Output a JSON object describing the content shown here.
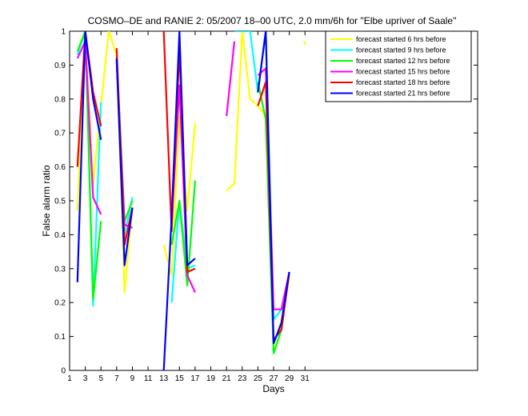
{
  "chart_data": {
    "type": "line",
    "title": "COSMO–DE and RANIE 2: 05/2007 18–00 UTC, 2.0 mm/6h for \"Elbe upriver of Saale\"",
    "xlabel": "Days",
    "ylabel": "False alarm ratio",
    "xlim": [
      1,
      53
    ],
    "ylim": [
      0,
      1
    ],
    "xticks": [
      1,
      3,
      5,
      7,
      9,
      11,
      13,
      15,
      17,
      19,
      21,
      23,
      25,
      27,
      29,
      31
    ],
    "yticks": [
      0,
      0.1,
      0.2,
      0.3,
      0.4,
      0.5,
      0.6,
      0.7,
      0.8,
      0.9,
      1
    ],
    "ytick_labels": [
      "0",
      "0.1",
      "0.2",
      "0.3",
      "0.4",
      "0.5",
      "0.6",
      "0.7",
      "0.8",
      "0.9",
      "1"
    ],
    "legend_position": "top-right",
    "series": [
      {
        "name": "forecast started 6 hrs before",
        "color": "#ffff00",
        "segments": [
          [
            [
              2,
              0.47
            ],
            [
              3,
              1.0
            ],
            [
              4,
              0.55
            ],
            [
              5,
              0.78
            ],
            [
              6,
              1.0
            ],
            [
              7,
              0.93
            ],
            [
              8,
              0.23
            ],
            [
              9,
              0.48
            ]
          ],
          [
            [
              13,
              0.37
            ],
            [
              14,
              0.28
            ],
            [
              15,
              0.75
            ],
            [
              16,
              0.47
            ],
            [
              17,
              0.73
            ]
          ],
          [
            [
              21,
              0.53
            ],
            [
              22,
              0.55
            ],
            [
              23,
              1.0
            ],
            [
              24,
              0.8
            ],
            [
              25,
              0.78
            ],
            [
              26,
              0.75
            ],
            [
              27,
              0.07
            ],
            [
              28,
              0.15
            ],
            [
              29,
              0.27
            ]
          ],
          [
            [
              30.9,
              0.97
            ],
            [
              31,
              0.96
            ]
          ]
        ]
      },
      {
        "name": "forecast started 9 hrs before",
        "color": "#00ffff",
        "segments": [
          [
            [
              2,
              0.93
            ],
            [
              3,
              1.0
            ],
            [
              4,
              0.19
            ],
            [
              5,
              0.79
            ]
          ],
          [
            [
              7,
              0.92
            ],
            [
              8,
              0.4
            ],
            [
              9,
              0.51
            ]
          ],
          [
            [
              14,
              0.2
            ],
            [
              15,
              0.5
            ],
            [
              16,
              0.3
            ],
            [
              17,
              0.31
            ]
          ],
          [
            [
              22,
              1.0
            ],
            [
              24,
              1.0
            ],
            [
              25,
              0.82
            ],
            [
              26,
              1.0
            ],
            [
              27,
              0.15
            ],
            [
              28,
              0.18
            ],
            [
              29,
              0.28
            ]
          ]
        ]
      },
      {
        "name": "forecast started 12 hrs before",
        "color": "#00ff00",
        "segments": [
          [
            [
              2,
              0.94
            ],
            [
              3,
              1.0
            ],
            [
              4,
              0.21
            ],
            [
              5,
              0.44
            ]
          ],
          [
            [
              7,
              0.93
            ],
            [
              8,
              0.44
            ],
            [
              9,
              0.5
            ]
          ],
          [
            [
              14,
              0.37
            ],
            [
              15,
              0.5
            ],
            [
              16,
              0.25
            ],
            [
              17,
              0.56
            ]
          ],
          [
            [
              25,
              0.85
            ],
            [
              26,
              0.74
            ],
            [
              27,
              0.05
            ],
            [
              28,
              0.12
            ],
            [
              29,
              0.29
            ]
          ]
        ]
      },
      {
        "name": "forecast started 15 hrs before",
        "color": "#ff00ff",
        "segments": [
          [
            [
              2,
              0.92
            ],
            [
              3,
              0.97
            ],
            [
              4,
              0.51
            ],
            [
              5,
              0.46
            ]
          ],
          [
            [
              7,
              0.91
            ],
            [
              8,
              0.43
            ],
            [
              9,
              0.42
            ]
          ],
          [
            [
              14,
              0.43
            ],
            [
              15,
              0.84
            ],
            [
              16,
              0.28
            ],
            [
              17,
              0.23
            ]
          ],
          [
            [
              21,
              0.75
            ],
            [
              22,
              0.97
            ]
          ],
          [
            [
              25,
              0.87
            ],
            [
              26,
              0.89
            ],
            [
              27,
              0.18
            ],
            [
              28,
              0.18
            ],
            [
              29,
              0.29
            ]
          ]
        ]
      },
      {
        "name": "forecast started 18 hrs before",
        "color": "#ff0000",
        "segments": [
          [
            [
              2,
              0.6
            ],
            [
              3,
              1.0
            ],
            [
              4,
              0.82
            ],
            [
              5,
              0.72
            ]
          ],
          [
            [
              7,
              0.95
            ],
            [
              8,
              0.37
            ],
            [
              9,
              0.48
            ]
          ],
          [
            [
              13,
              1.0
            ],
            [
              14,
              0.41
            ],
            [
              15,
              0.95
            ],
            [
              16,
              0.29
            ],
            [
              17,
              0.3
            ]
          ],
          [
            [
              25,
              0.78
            ],
            [
              26,
              0.85
            ],
            [
              27,
              0.09
            ],
            [
              28,
              0.12
            ],
            [
              29,
              0.29
            ]
          ]
        ]
      },
      {
        "name": "forecast started 21 hrs before",
        "color": "#0000ff",
        "segments": [
          [
            [
              2,
              0.26
            ],
            [
              3,
              1.0
            ],
            [
              4,
              0.8
            ],
            [
              5,
              0.68
            ]
          ],
          [
            [
              7,
              0.92
            ],
            [
              8,
              0.31
            ],
            [
              9,
              0.48
            ]
          ],
          [
            [
              13,
              0.0
            ],
            [
              14,
              0.45
            ],
            [
              15,
              1.0
            ],
            [
              16,
              0.31
            ],
            [
              17,
              0.33
            ]
          ],
          [
            [
              25,
              0.82
            ],
            [
              26,
              1.0
            ],
            [
              27,
              0.08
            ],
            [
              28,
              0.14
            ],
            [
              29,
              0.29
            ]
          ]
        ]
      }
    ]
  }
}
